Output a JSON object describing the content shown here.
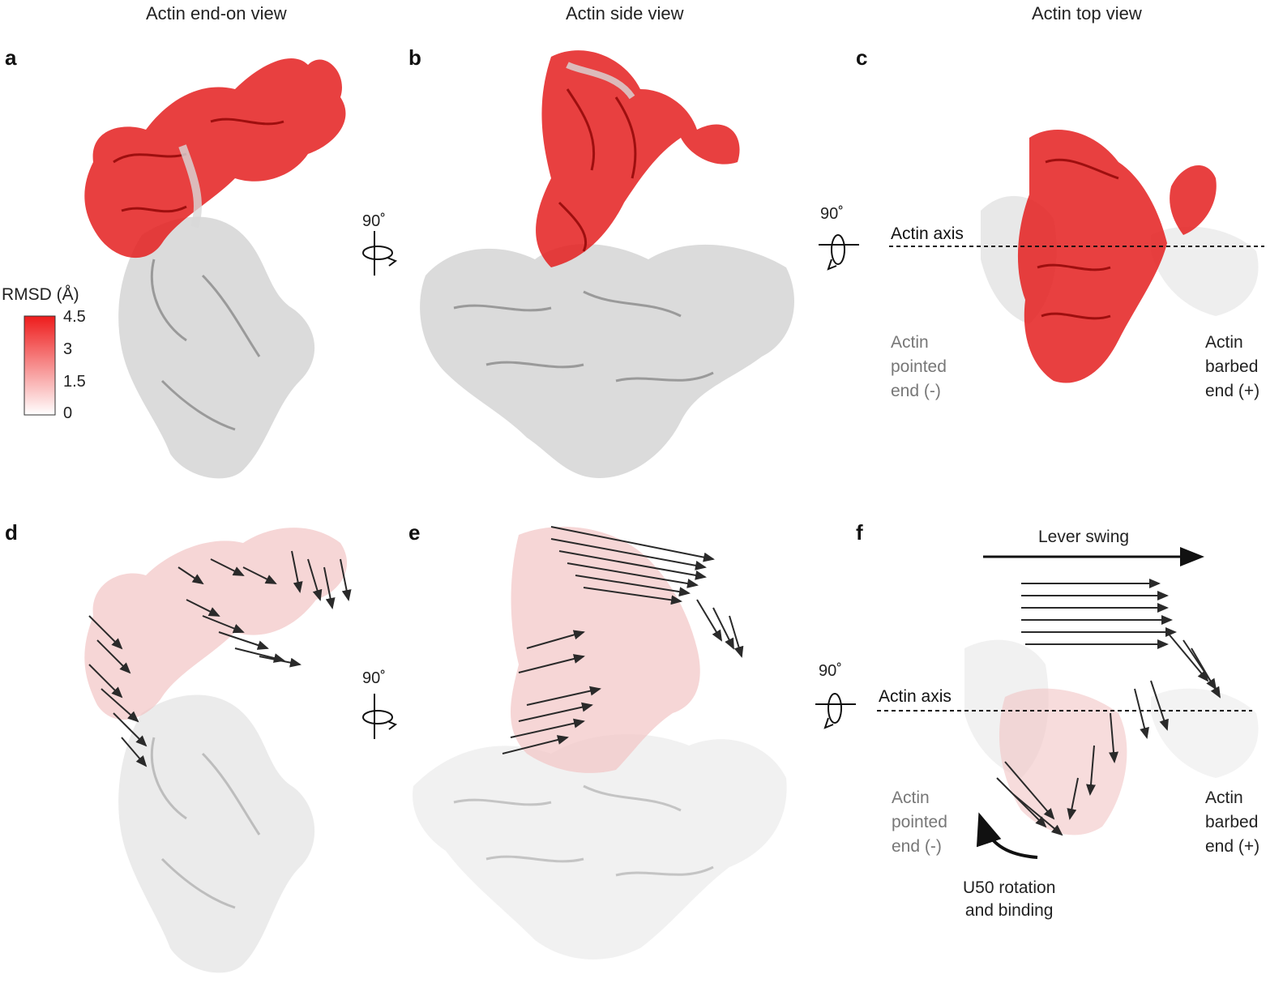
{
  "columns": {
    "end_on": "Actin end-on view",
    "side": "Actin side view",
    "top": "Actin top view"
  },
  "panels": [
    "a",
    "b",
    "c",
    "d",
    "e",
    "f"
  ],
  "rotation": {
    "label_ab": "90˚",
    "label_bc": "90˚",
    "label_de": "90˚",
    "label_ef": "90˚"
  },
  "legend": {
    "title": "RMSD (Å)",
    "ticks": [
      "4.5",
      "3",
      "1.5",
      "0"
    ],
    "color_high": "#ee1c1c",
    "color_low": "#ffffff"
  },
  "panel_c": {
    "axis_label": "Actin axis",
    "pointed_end": [
      "Actin",
      "pointed",
      "end (-)"
    ],
    "barbed_end": [
      "Actin",
      "barbed",
      "end (+)"
    ]
  },
  "panel_f": {
    "axis_label": "Actin axis",
    "lever_swing": "Lever swing",
    "pointed_end": [
      "Actin",
      "pointed",
      "end (-)"
    ],
    "barbed_end": [
      "Actin",
      "barbed",
      "end (+)"
    ],
    "u50": [
      "U50 rotation",
      "and binding"
    ]
  },
  "colors": {
    "structure_red": "#e41f1f",
    "structure_grey": "#c9c9c9",
    "arrow_dark": "#2a2a2a"
  }
}
